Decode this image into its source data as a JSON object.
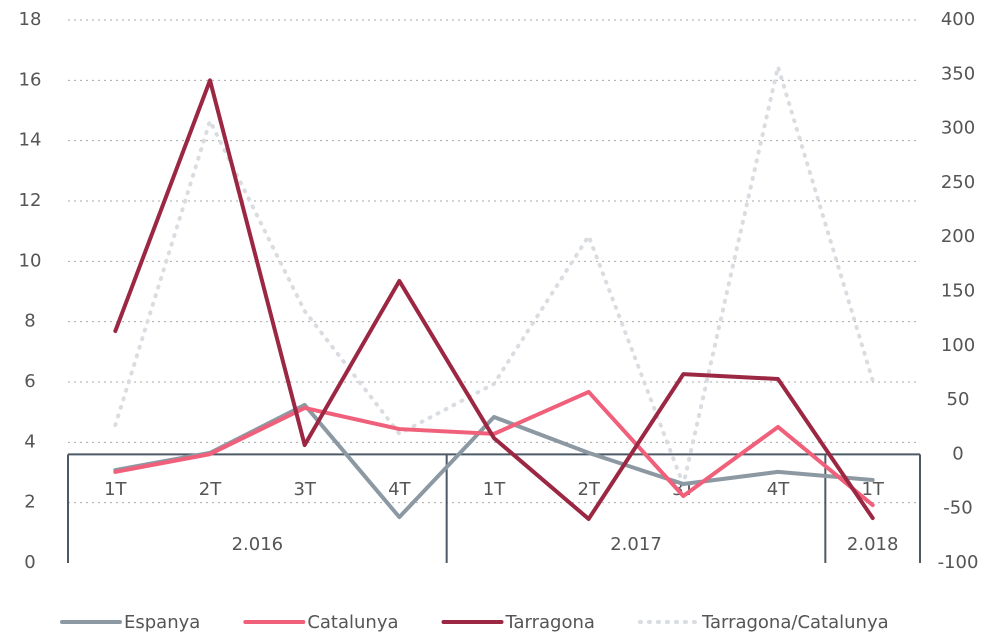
{
  "chart_data": {
    "type": "line",
    "categories": [
      "1T",
      "2T",
      "3T",
      "4T",
      "1T",
      "2T",
      "3T",
      "4T",
      "1T"
    ],
    "category_groups": [
      "2.016",
      "2.016",
      "2.016",
      "2.016",
      "2.017",
      "2.017",
      "2.017",
      "2.017",
      "2.018"
    ],
    "series": [
      {
        "name": "Espanya",
        "color": "#8c99a3",
        "values": [
          3.08,
          3.65,
          5.24,
          1.52,
          4.84,
          3.65,
          2.62,
          3.02,
          2.75
        ]
      },
      {
        "name": "Catalunya",
        "color": "#f0607a",
        "values": [
          3.02,
          3.61,
          5.14,
          4.44,
          4.28,
          5.67,
          2.22,
          4.51,
          1.92
        ]
      },
      {
        "name": "Tarragona",
        "color": "#9b2743",
        "values": [
          7.69,
          16.0,
          3.91,
          9.35,
          4.14,
          1.46,
          6.26,
          6.1,
          1.49
        ]
      },
      {
        "name": "Tarragona/Catalunya",
        "color": "#d9dce1",
        "axis": "y2",
        "dashed": true,
        "values": [
          27,
          307,
          132,
          19,
          65,
          201,
          -28,
          357,
          68
        ]
      }
    ],
    "ylim": [
      0,
      18
    ],
    "yticks": [
      0,
      2,
      4,
      6,
      8,
      10,
      12,
      14,
      16,
      18
    ],
    "y2lim": [
      -100,
      400
    ],
    "y2ticks": [
      -100,
      -50,
      0,
      50,
      100,
      150,
      200,
      250,
      300,
      350,
      400
    ],
    "grid": true,
    "legend": "bottom"
  }
}
